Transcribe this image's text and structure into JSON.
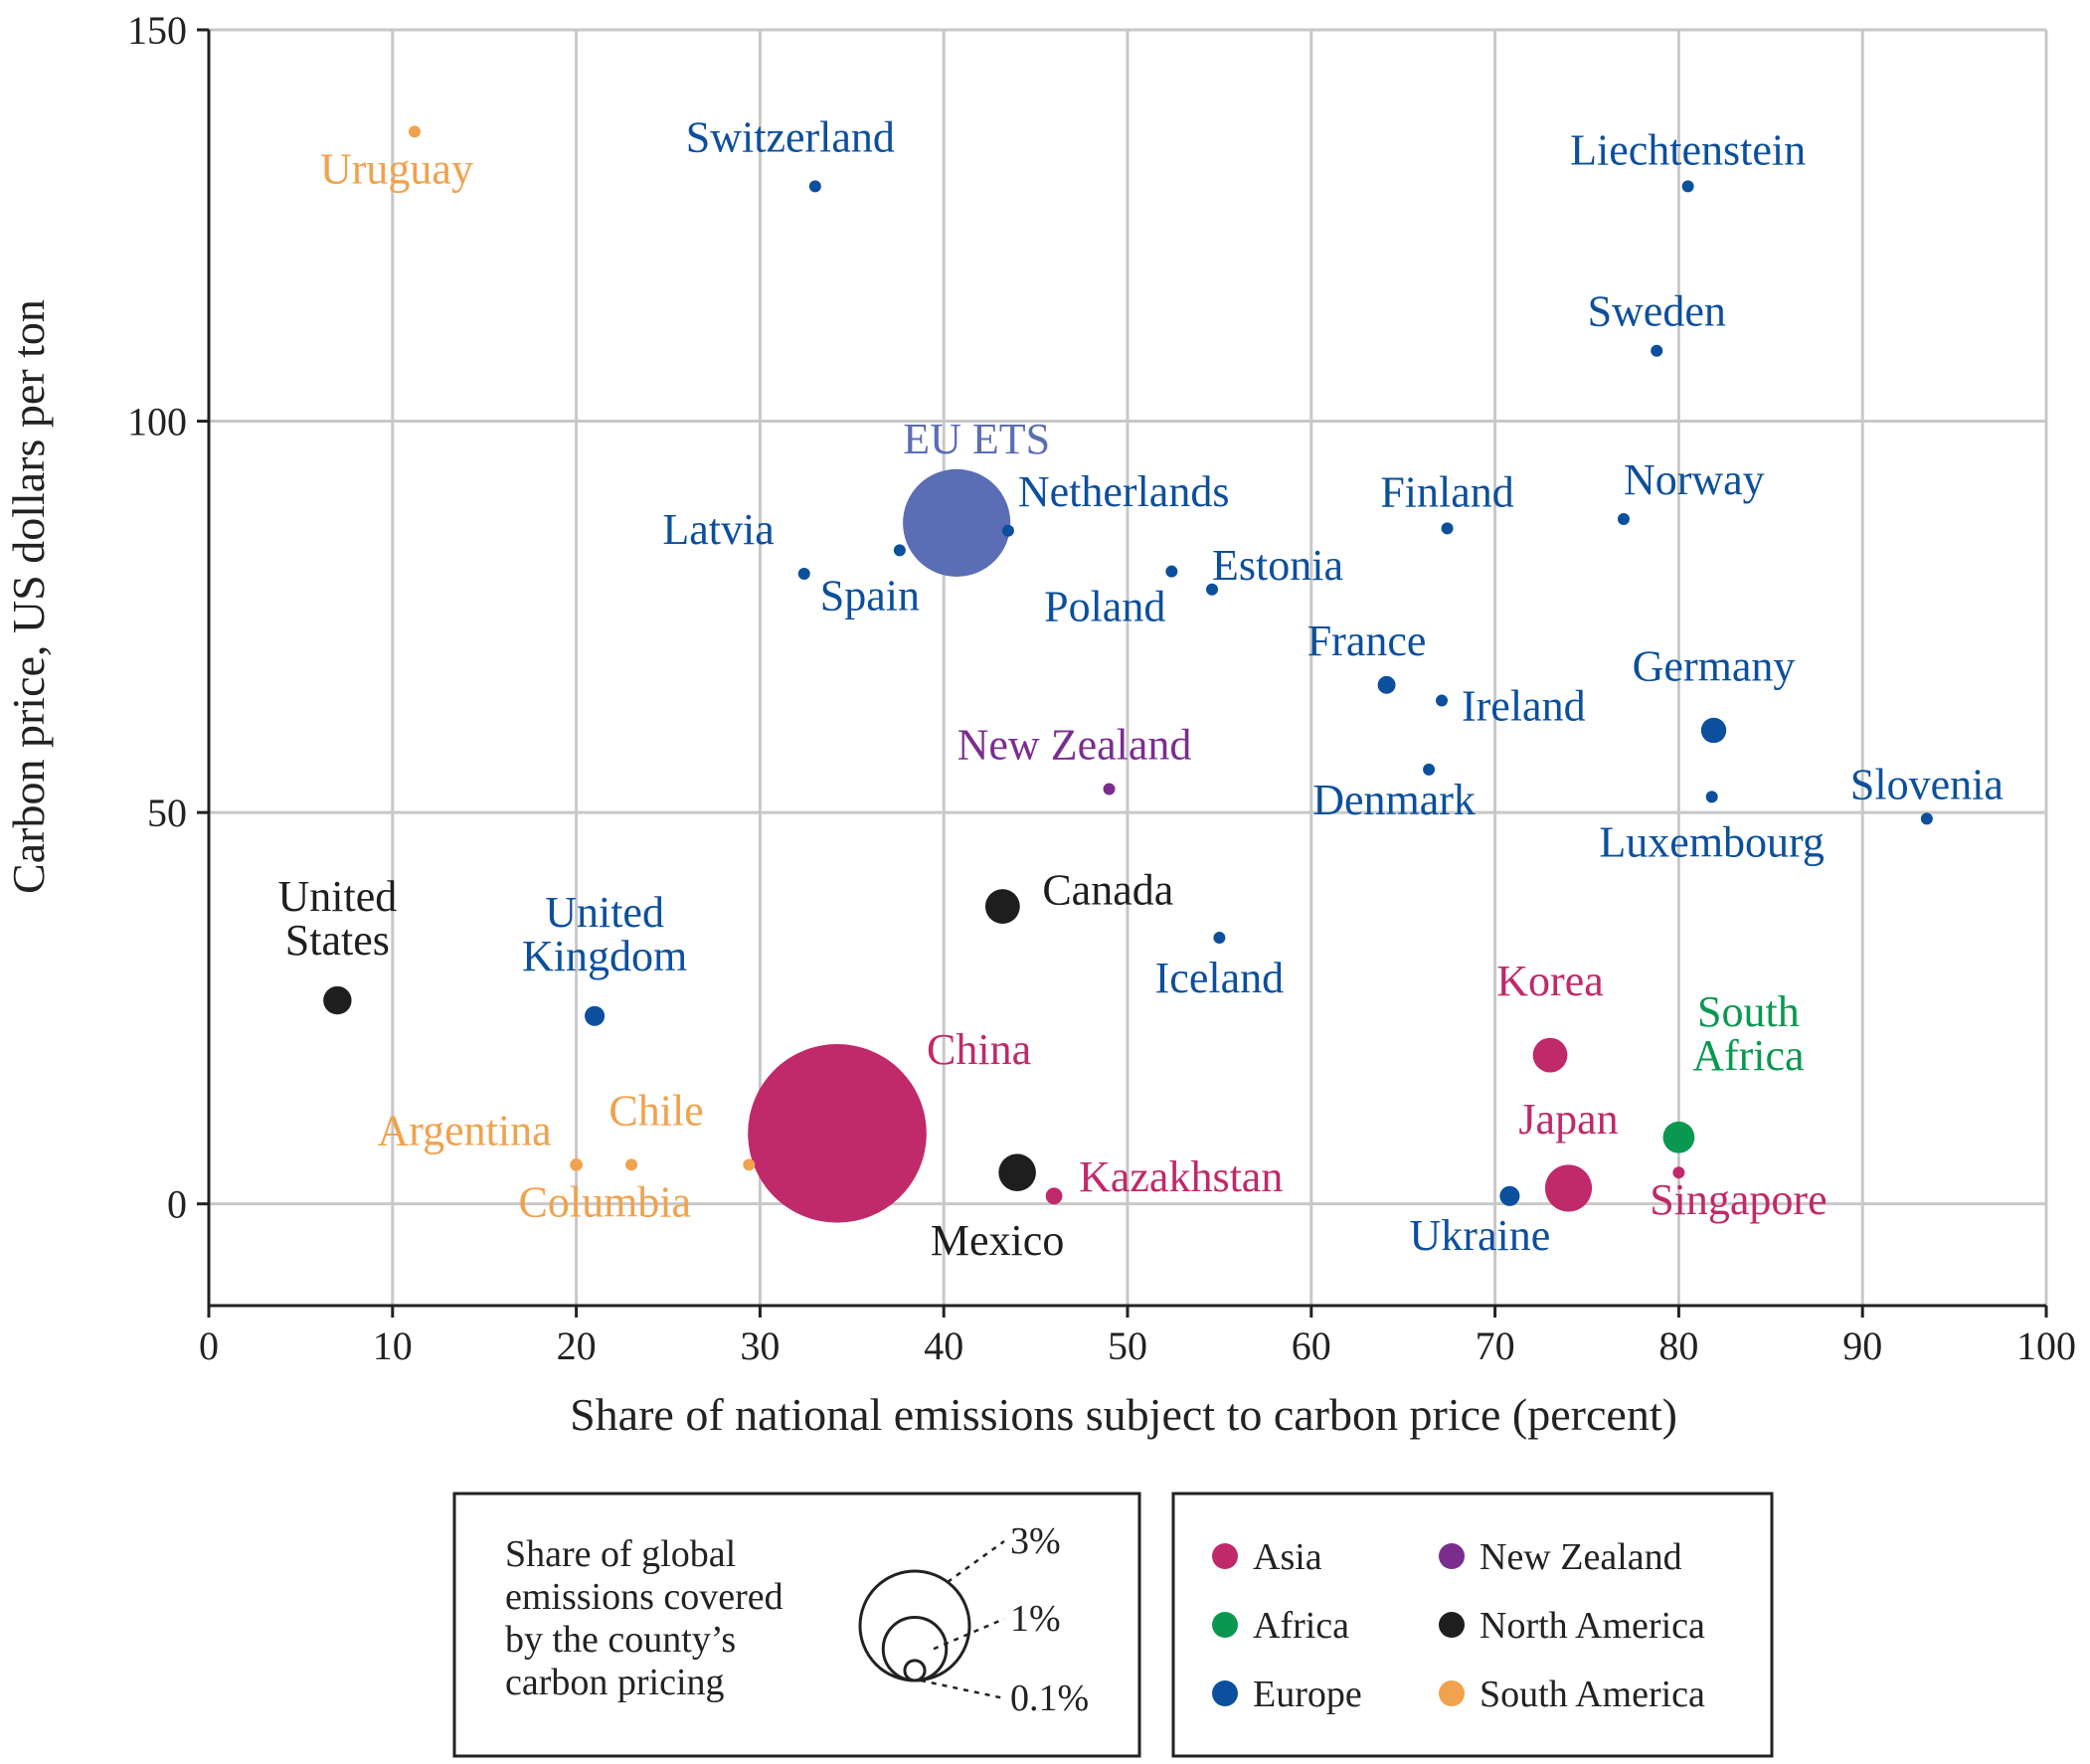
{
  "chart_data": {
    "type": "scatter",
    "title": "",
    "xlabel": "Share of national emissions subject to carbon price (percent)",
    "ylabel": "Carbon price, US dollars per ton",
    "xlim": [
      0,
      100
    ],
    "ylim": [
      -13,
      150
    ],
    "x_ticks": [
      0,
      10,
      20,
      30,
      40,
      50,
      60,
      70,
      80,
      90,
      100
    ],
    "y_ticks": [
      0,
      50,
      100,
      150
    ],
    "grid": true,
    "colors": {
      "Asia": "#c0296a",
      "Africa": "#0a9850",
      "Europe": "#0c4f9c",
      "New Zealand": "#7b2d8e",
      "North America": "#1e1e1e",
      "South America": "#f0a24e",
      "EU": "#5b6db4"
    },
    "points": [
      {
        "name": "Uruguay",
        "region": "South America",
        "x": 11.2,
        "y": 137,
        "share": 0.005,
        "label": [
          "Uruguay"
        ]
      },
      {
        "name": "Switzerland",
        "region": "Europe",
        "x": 33.0,
        "y": 130,
        "share": 0.01,
        "label": [
          "Switzerland"
        ]
      },
      {
        "name": "Liechtenstein",
        "region": "Europe",
        "x": 80.5,
        "y": 130,
        "share": 0.0005,
        "label": [
          "Liechtenstein"
        ]
      },
      {
        "name": "Sweden",
        "region": "Europe",
        "x": 78.8,
        "y": 109,
        "share": 0.01,
        "label": [
          "Sweden"
        ]
      },
      {
        "name": "EU ETS",
        "region": "EU",
        "x": 40.7,
        "y": 87,
        "share": 2.9,
        "label": [
          "EU ETS"
        ]
      },
      {
        "name": "Netherlands",
        "region": "Europe",
        "x": 43.5,
        "y": 86,
        "share": 0.01,
        "label": [
          "Netherlands"
        ]
      },
      {
        "name": "Latvia",
        "region": "Europe",
        "x": 32.4,
        "y": 80.5,
        "share": 0.002,
        "label": [
          "Latvia"
        ]
      },
      {
        "name": "Spain",
        "region": "Europe",
        "x": 37.6,
        "y": 83.5,
        "share": 0.005,
        "label": [
          "Spain"
        ]
      },
      {
        "name": "Poland",
        "region": "Europe",
        "x": 52.4,
        "y": 80.8,
        "share": 0.01,
        "label": [
          "Poland"
        ]
      },
      {
        "name": "Estonia",
        "region": "Europe",
        "x": 54.6,
        "y": 78.5,
        "share": 0.001,
        "label": [
          "Estonia"
        ]
      },
      {
        "name": "Finland",
        "region": "Europe",
        "x": 67.4,
        "y": 86.3,
        "share": 0.01,
        "label": [
          "Finland"
        ]
      },
      {
        "name": "Norway",
        "region": "Europe",
        "x": 77.0,
        "y": 87.5,
        "share": 0.02,
        "label": [
          "Norway"
        ]
      },
      {
        "name": "France",
        "region": "Europe",
        "x": 64.1,
        "y": 66.3,
        "share": 0.08,
        "label": [
          "France"
        ]
      },
      {
        "name": "Ireland",
        "region": "Europe",
        "x": 67.1,
        "y": 64.3,
        "share": 0.01,
        "label": [
          "Ireland"
        ]
      },
      {
        "name": "Germany",
        "region": "Europe",
        "x": 81.9,
        "y": 60.5,
        "share": 0.16,
        "label": [
          "Germany"
        ]
      },
      {
        "name": "Luxembourg",
        "region": "Europe",
        "x": 81.8,
        "y": 52,
        "share": 0.001,
        "label": [
          "Luxembourg"
        ]
      },
      {
        "name": "Denmark",
        "region": "Europe",
        "x": 66.4,
        "y": 55.5,
        "share": 0.01,
        "label": [
          "Denmark"
        ]
      },
      {
        "name": "Slovenia",
        "region": "Europe",
        "x": 93.5,
        "y": 49.2,
        "share": 0.002,
        "label": [
          "Slovenia"
        ]
      },
      {
        "name": "Iceland",
        "region": "Europe",
        "x": 55.0,
        "y": 34,
        "share": 0.001,
        "label": [
          "Iceland"
        ]
      },
      {
        "name": "New Zealand",
        "region": "New Zealand",
        "x": 49.0,
        "y": 53,
        "share": 0.02,
        "label": [
          "New Zealand"
        ]
      },
      {
        "name": "Canada",
        "region": "North America",
        "x": 43.2,
        "y": 38,
        "share": 0.3,
        "label": [
          "Canada"
        ]
      },
      {
        "name": "United States",
        "region": "North America",
        "x": 7.0,
        "y": 26,
        "share": 0.2,
        "label": [
          "United",
          "States"
        ]
      },
      {
        "name": "United Kingdom",
        "region": "Europe",
        "x": 21.0,
        "y": 24,
        "share": 0.1,
        "label": [
          "United",
          "Kingdom"
        ]
      },
      {
        "name": "China",
        "region": "Asia",
        "x": 34.2,
        "y": 9,
        "share": 8.0,
        "label": [
          "China"
        ]
      },
      {
        "name": "Mexico",
        "region": "North America",
        "x": 44.0,
        "y": 4,
        "share": 0.35,
        "label": [
          "Mexico"
        ]
      },
      {
        "name": "Kazakhstan",
        "region": "Asia",
        "x": 46.0,
        "y": 1,
        "share": 0.07,
        "label": [
          "Kazakhstan"
        ]
      },
      {
        "name": "Argentina",
        "region": "South America",
        "x": 20.0,
        "y": 5,
        "share": 0.04,
        "label": [
          "Argentina"
        ]
      },
      {
        "name": "Chile",
        "region": "South America",
        "x": 23.0,
        "y": 5,
        "share": 0.025,
        "label": [
          "Chile"
        ]
      },
      {
        "name": "Columbia",
        "region": "South America",
        "x": 29.4,
        "y": 5,
        "share": 0.025,
        "label": [
          "Columbia"
        ]
      },
      {
        "name": "Korea",
        "region": "Asia",
        "x": 73.0,
        "y": 19,
        "share": 0.3,
        "label": [
          "Korea"
        ]
      },
      {
        "name": "Japan",
        "region": "Asia",
        "x": 74.0,
        "y": 2,
        "share": 0.55,
        "label": [
          "Japan"
        ]
      },
      {
        "name": "South Africa",
        "region": "Africa",
        "x": 80.0,
        "y": 8.5,
        "share": 0.25,
        "label": [
          "South",
          "Africa"
        ]
      },
      {
        "name": "Singapore",
        "region": "Asia",
        "x": 80.0,
        "y": 4,
        "share": 0.03,
        "label": [
          "Singapore"
        ]
      },
      {
        "name": "Ukraine",
        "region": "Europe",
        "x": 70.8,
        "y": 1,
        "share": 0.1,
        "label": [
          "Ukraine"
        ]
      }
    ]
  },
  "legend_size": {
    "title_lines": [
      "Share of global",
      "emissions covered",
      "by  the county’s",
      "carbon pricing"
    ],
    "items": [
      {
        "label": "3%",
        "share": 3
      },
      {
        "label": "1%",
        "share": 1
      },
      {
        "label": "0.1%",
        "share": 0.1
      }
    ]
  },
  "legend_color": {
    "items": [
      {
        "label": "Asia",
        "color": "#c0296a"
      },
      {
        "label": "New Zealand",
        "color": "#7b2d8e"
      },
      {
        "label": "Africa",
        "color": "#0a9850"
      },
      {
        "label": "North America",
        "color": "#1e1e1e"
      },
      {
        "label": "Europe",
        "color": "#0c4f9c"
      },
      {
        "label": "South America",
        "color": "#f0a24e"
      }
    ]
  }
}
